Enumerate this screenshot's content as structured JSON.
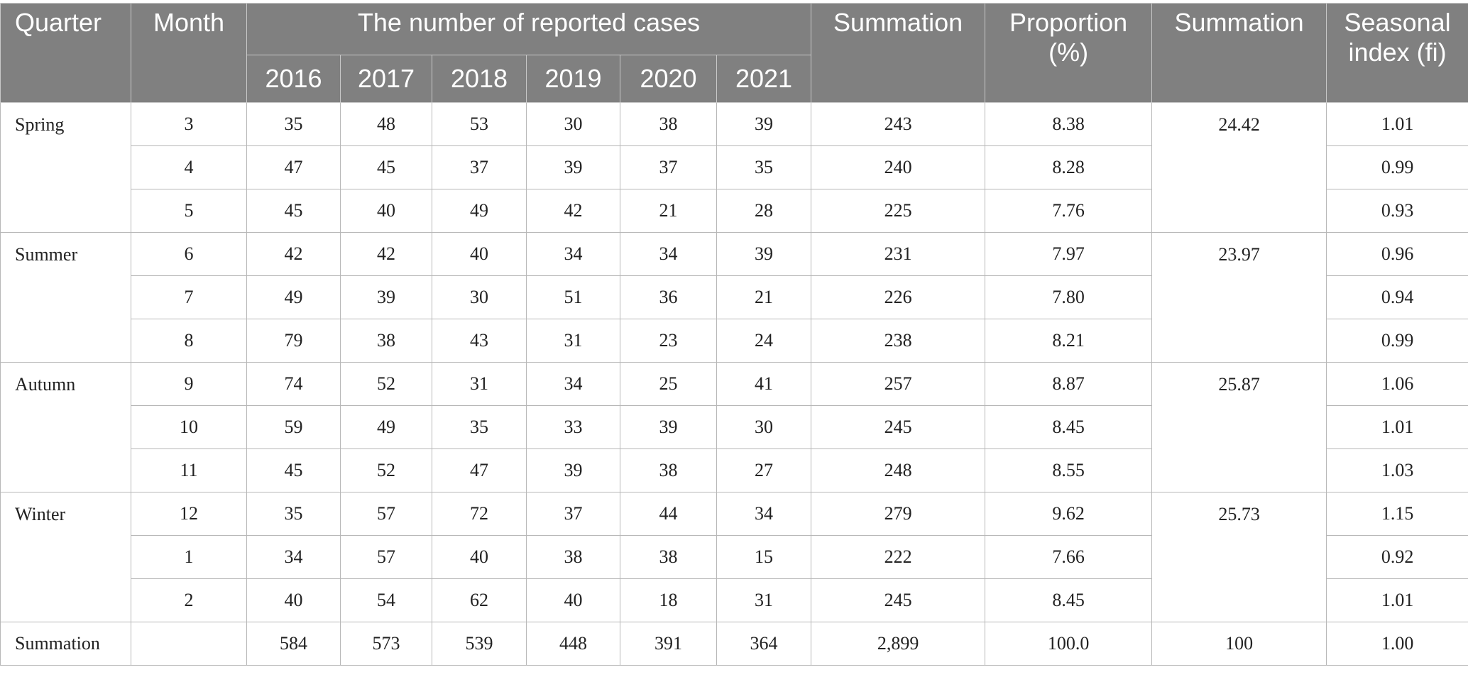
{
  "header": {
    "quarter": "Quarter",
    "month": "Month",
    "group": "The number of reported cases",
    "years": [
      "2016",
      "2017",
      "2018",
      "2019",
      "2020",
      "2021"
    ],
    "summation": "Summation",
    "proportion": "Proportion (%)",
    "summation2": "Summation",
    "seasonal": "Seasonal index (fi)"
  },
  "quarters": [
    {
      "name": "Spring",
      "summation": "24.42",
      "rows": [
        {
          "month": "3",
          "cases": [
            "35",
            "48",
            "53",
            "30",
            "38",
            "39"
          ],
          "sum": "243",
          "prop": "8.38",
          "fi": "1.01"
        },
        {
          "month": "4",
          "cases": [
            "47",
            "45",
            "37",
            "39",
            "37",
            "35"
          ],
          "sum": "240",
          "prop": "8.28",
          "fi": "0.99"
        },
        {
          "month": "5",
          "cases": [
            "45",
            "40",
            "49",
            "42",
            "21",
            "28"
          ],
          "sum": "225",
          "prop": "7.76",
          "fi": "0.93"
        }
      ]
    },
    {
      "name": "Summer",
      "summation": "23.97",
      "rows": [
        {
          "month": "6",
          "cases": [
            "42",
            "42",
            "40",
            "34",
            "34",
            "39"
          ],
          "sum": "231",
          "prop": "7.97",
          "fi": "0.96"
        },
        {
          "month": "7",
          "cases": [
            "49",
            "39",
            "30",
            "51",
            "36",
            "21"
          ],
          "sum": "226",
          "prop": "7.80",
          "fi": "0.94"
        },
        {
          "month": "8",
          "cases": [
            "79",
            "38",
            "43",
            "31",
            "23",
            "24"
          ],
          "sum": "238",
          "prop": "8.21",
          "fi": "0.99"
        }
      ]
    },
    {
      "name": "Autumn",
      "summation": "25.87",
      "rows": [
        {
          "month": "9",
          "cases": [
            "74",
            "52",
            "31",
            "34",
            "25",
            "41"
          ],
          "sum": "257",
          "prop": "8.87",
          "fi": "1.06"
        },
        {
          "month": "10",
          "cases": [
            "59",
            "49",
            "35",
            "33",
            "39",
            "30"
          ],
          "sum": "245",
          "prop": "8.45",
          "fi": "1.01"
        },
        {
          "month": "11",
          "cases": [
            "45",
            "52",
            "47",
            "39",
            "38",
            "27"
          ],
          "sum": "248",
          "prop": "8.55",
          "fi": "1.03"
        }
      ]
    },
    {
      "name": "Winter",
      "summation": "25.73",
      "rows": [
        {
          "month": "12",
          "cases": [
            "35",
            "57",
            "72",
            "37",
            "44",
            "34"
          ],
          "sum": "279",
          "prop": "9.62",
          "fi": "1.15"
        },
        {
          "month": "1",
          "cases": [
            "34",
            "57",
            "40",
            "38",
            "38",
            "15"
          ],
          "sum": "222",
          "prop": "7.66",
          "fi": "0.92"
        },
        {
          "month": "2",
          "cases": [
            "40",
            "54",
            "62",
            "40",
            "18",
            "31"
          ],
          "sum": "245",
          "prop": "8.45",
          "fi": "1.01"
        }
      ]
    }
  ],
  "total": {
    "label": "Summation",
    "month": "",
    "cases": [
      "584",
      "573",
      "539",
      "448",
      "391",
      "364"
    ],
    "sum": "2,899",
    "prop": "100.0",
    "summation": "100",
    "fi": "1.00"
  }
}
